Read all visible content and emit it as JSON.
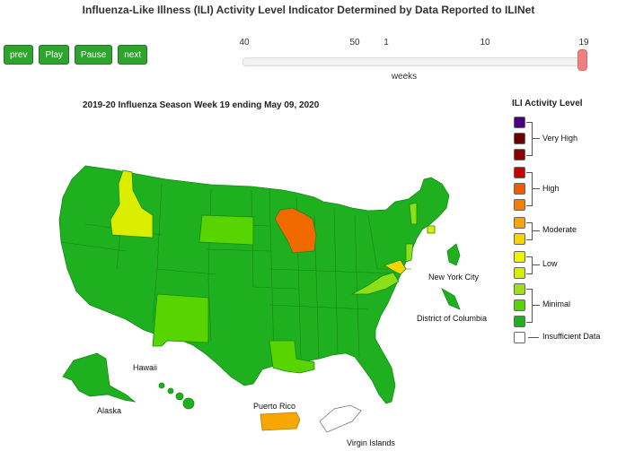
{
  "header": {
    "title": "Influenza-Like Illness (ILI) Activity Level Indicator Determined by Data Reported to ILINet"
  },
  "controls": {
    "prev": "prev",
    "play": "Play",
    "pause": "Pause",
    "next": "next"
  },
  "slider": {
    "ticks": [
      "40",
      "50",
      "1",
      "10",
      "19"
    ],
    "label": "weeks",
    "current_week": 19,
    "position_fraction": 1.0
  },
  "map": {
    "title": "2019-20 Influenza Season Week 19 ending May 09, 2020",
    "labels": {
      "nyc": "New York City",
      "dc": "District of Columbia",
      "hawaii": "Hawaii",
      "alaska": "Alaska",
      "puerto_rico": "Puerto Rico",
      "virgin_islands": "Virgin Islands"
    },
    "colors": {
      "minimal_base": "#1fb01f",
      "minimal_mid": "#58d400",
      "minimal_high": "#8ce017",
      "low_yellow": "#dcee00",
      "moderate": "#f5d500",
      "moderate_orange": "#f7a800",
      "high_orange": "#f06a00",
      "insufficient": "#ffffff"
    },
    "state_levels": {
      "Idaho": "Low",
      "South Dakota": "Minimal",
      "Wisconsin": "High",
      "New Mexico": "Minimal",
      "Louisiana": "Minimal",
      "Virginia": "Minimal",
      "Maryland": "Moderate",
      "Puerto Rico": "Moderate",
      "Virgin Islands": "Insufficient Data"
    }
  },
  "legend": {
    "title": "ILI Activity Level",
    "groups": [
      {
        "label": "Very High",
        "colors": [
          "#4b0082",
          "#6b0000",
          "#8b0000"
        ]
      },
      {
        "label": "High",
        "colors": [
          "#cc0000",
          "#f05a00",
          "#f57f00"
        ]
      },
      {
        "label": "Moderate",
        "colors": [
          "#f7a800",
          "#f5d500"
        ]
      },
      {
        "label": "Low",
        "colors": [
          "#eef300",
          "#d4ee00"
        ]
      },
      {
        "label": "Minimal",
        "colors": [
          "#9be01a",
          "#58d400",
          "#1fb01f"
        ]
      },
      {
        "label": "Insufficient Data",
        "colors": [
          "#ffffff"
        ]
      }
    ]
  }
}
